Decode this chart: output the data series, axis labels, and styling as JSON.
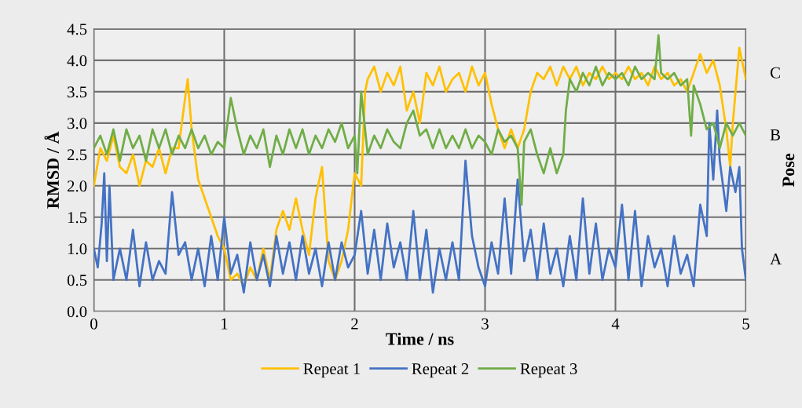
{
  "chart_data": {
    "type": "line",
    "xlabel": "Time / ns",
    "ylabel": "RMSD / Å",
    "y2label": "Pose",
    "xlim": [
      0,
      5
    ],
    "xticks": [
      0,
      1,
      2,
      3,
      4,
      5
    ],
    "ylim": [
      0,
      4.5
    ],
    "yticks": [
      {
        "value": 0,
        "label": "0.0"
      },
      {
        "value": 0.5,
        "label": "0.5"
      },
      {
        "value": 1,
        "label": "1.0"
      },
      {
        "value": 1.5,
        "label": "1.5"
      },
      {
        "value": 2,
        "label": "2.0"
      },
      {
        "value": 2.5,
        "label": "2.5"
      },
      {
        "value": 3,
        "label": "3.0"
      },
      {
        "value": 3.5,
        "label": "3.5"
      },
      {
        "value": 4,
        "label": "4.0"
      },
      {
        "value": 4.5,
        "label": "4.5"
      }
    ],
    "annotations": [
      "A",
      "B",
      "C"
    ],
    "grid": true,
    "legend": "bottom",
    "marker": "none",
    "line_style": "solid",
    "series": [
      {
        "name": "Repeat 1",
        "color": "#ffc000",
        "x": [
          0,
          0.05,
          0.1,
          0.15,
          0.2,
          0.25,
          0.3,
          0.35,
          0.4,
          0.45,
          0.5,
          0.55,
          0.6,
          0.65,
          0.7,
          0.72,
          0.75,
          0.8,
          0.85,
          0.9,
          0.95,
          1.0,
          1.05,
          1.1,
          1.15,
          1.2,
          1.25,
          1.3,
          1.35,
          1.4,
          1.45,
          1.5,
          1.55,
          1.6,
          1.65,
          1.7,
          1.75,
          1.8,
          1.85,
          1.9,
          1.95,
          2.0,
          2.05,
          2.08,
          2.1,
          2.15,
          2.2,
          2.25,
          2.3,
          2.35,
          2.4,
          2.45,
          2.5,
          2.55,
          2.6,
          2.65,
          2.7,
          2.75,
          2.8,
          2.85,
          2.9,
          2.95,
          3.0,
          3.05,
          3.1,
          3.15,
          3.2,
          3.25,
          3.3,
          3.35,
          3.4,
          3.45,
          3.5,
          3.55,
          3.6,
          3.65,
          3.7,
          3.75,
          3.8,
          3.85,
          3.9,
          3.95,
          4.0,
          4.05,
          4.1,
          4.15,
          4.2,
          4.25,
          4.3,
          4.35,
          4.4,
          4.45,
          4.5,
          4.55,
          4.6,
          4.65,
          4.7,
          4.75,
          4.8,
          4.85,
          4.88,
          4.9,
          4.95,
          5.0
        ],
        "values": [
          2.0,
          2.6,
          2.4,
          2.8,
          2.3,
          2.2,
          2.5,
          2.0,
          2.4,
          2.3,
          2.6,
          2.2,
          2.6,
          2.6,
          3.4,
          3.7,
          2.9,
          2.1,
          1.8,
          1.5,
          1.2,
          1.0,
          0.5,
          0.6,
          0.4,
          0.7,
          0.5,
          1.0,
          0.5,
          1.3,
          1.6,
          1.3,
          1.8,
          1.3,
          0.9,
          1.8,
          2.3,
          0.8,
          0.5,
          0.8,
          1.3,
          2.2,
          2.0,
          3.5,
          3.7,
          3.9,
          3.5,
          3.8,
          3.6,
          3.9,
          3.2,
          3.5,
          3.0,
          3.8,
          3.6,
          3.9,
          3.5,
          3.7,
          3.8,
          3.5,
          3.9,
          3.6,
          3.8,
          3.3,
          2.9,
          2.6,
          2.9,
          2.6,
          2.9,
          3.5,
          3.8,
          3.7,
          3.9,
          3.6,
          3.9,
          3.7,
          3.9,
          3.6,
          3.8,
          3.7,
          3.9,
          3.7,
          3.8,
          3.7,
          3.9,
          3.7,
          3.8,
          3.6,
          3.9,
          3.7,
          3.8,
          3.6,
          3.7,
          3.5,
          3.8,
          4.1,
          3.8,
          4.0,
          3.6,
          2.9,
          2.3,
          3.0,
          4.2,
          3.7
        ]
      },
      {
        "name": "Repeat 2",
        "color": "#4472c4",
        "x": [
          0,
          0.03,
          0.06,
          0.08,
          0.1,
          0.12,
          0.15,
          0.2,
          0.25,
          0.3,
          0.35,
          0.4,
          0.45,
          0.5,
          0.55,
          0.6,
          0.65,
          0.7,
          0.75,
          0.8,
          0.85,
          0.9,
          0.95,
          1.0,
          1.05,
          1.1,
          1.15,
          1.2,
          1.25,
          1.3,
          1.35,
          1.4,
          1.45,
          1.5,
          1.55,
          1.6,
          1.65,
          1.7,
          1.75,
          1.8,
          1.85,
          1.9,
          1.95,
          2.0,
          2.05,
          2.1,
          2.15,
          2.2,
          2.25,
          2.3,
          2.35,
          2.4,
          2.45,
          2.5,
          2.55,
          2.6,
          2.65,
          2.7,
          2.75,
          2.8,
          2.85,
          2.9,
          2.95,
          3.0,
          3.05,
          3.1,
          3.15,
          3.2,
          3.25,
          3.3,
          3.35,
          3.4,
          3.45,
          3.5,
          3.55,
          3.6,
          3.65,
          3.7,
          3.75,
          3.8,
          3.85,
          3.9,
          3.95,
          4.0,
          4.05,
          4.1,
          4.15,
          4.2,
          4.25,
          4.3,
          4.35,
          4.4,
          4.45,
          4.5,
          4.55,
          4.6,
          4.65,
          4.7,
          4.72,
          4.75,
          4.78,
          4.8,
          4.85,
          4.88,
          4.92,
          4.95,
          4.97,
          5.0
        ],
        "values": [
          1.0,
          0.7,
          1.4,
          2.2,
          0.8,
          2.0,
          0.5,
          1.0,
          0.5,
          1.3,
          0.4,
          1.1,
          0.5,
          0.8,
          0.6,
          1.9,
          0.9,
          1.1,
          0.5,
          1.0,
          0.4,
          1.2,
          0.5,
          1.5,
          0.6,
          0.9,
          0.3,
          1.1,
          0.5,
          0.9,
          0.4,
          1.2,
          0.6,
          1.1,
          0.5,
          1.2,
          0.6,
          1.0,
          0.4,
          1.1,
          0.5,
          1.1,
          0.7,
          0.9,
          1.6,
          0.6,
          1.3,
          0.5,
          1.4,
          0.7,
          1.1,
          0.5,
          1.6,
          0.5,
          1.3,
          0.3,
          1.0,
          0.5,
          1.1,
          0.5,
          2.4,
          1.2,
          0.7,
          0.4,
          1.1,
          0.6,
          1.8,
          0.6,
          2.1,
          0.8,
          1.3,
          0.5,
          1.4,
          0.6,
          1.0,
          0.4,
          1.2,
          0.5,
          1.8,
          0.6,
          1.4,
          0.5,
          1.0,
          0.7,
          1.7,
          0.5,
          1.6,
          0.4,
          1.2,
          0.7,
          1.0,
          0.4,
          1.2,
          0.6,
          0.9,
          0.4,
          1.7,
          1.2,
          3.0,
          2.1,
          3.2,
          2.4,
          1.6,
          2.3,
          1.9,
          2.3,
          1.0,
          0.5
        ]
      },
      {
        "name": "Repeat 3",
        "color": "#70ad47",
        "x": [
          0,
          0.05,
          0.1,
          0.15,
          0.2,
          0.25,
          0.3,
          0.35,
          0.4,
          0.45,
          0.5,
          0.55,
          0.6,
          0.65,
          0.7,
          0.75,
          0.8,
          0.85,
          0.9,
          0.95,
          1.0,
          1.05,
          1.1,
          1.15,
          1.2,
          1.25,
          1.3,
          1.35,
          1.4,
          1.45,
          1.5,
          1.55,
          1.6,
          1.65,
          1.7,
          1.75,
          1.8,
          1.85,
          1.9,
          1.95,
          2.0,
          2.02,
          2.05,
          2.1,
          2.15,
          2.2,
          2.25,
          2.3,
          2.35,
          2.4,
          2.45,
          2.5,
          2.55,
          2.6,
          2.65,
          2.7,
          2.75,
          2.8,
          2.85,
          2.9,
          2.95,
          3.0,
          3.05,
          3.1,
          3.15,
          3.2,
          3.25,
          3.28,
          3.3,
          3.35,
          3.4,
          3.45,
          3.5,
          3.55,
          3.6,
          3.62,
          3.65,
          3.7,
          3.75,
          3.8,
          3.85,
          3.9,
          3.95,
          4.0,
          4.05,
          4.1,
          4.15,
          4.2,
          4.25,
          4.3,
          4.33,
          4.35,
          4.4,
          4.45,
          4.5,
          4.55,
          4.58,
          4.6,
          4.65,
          4.7,
          4.75,
          4.8,
          4.85,
          4.9,
          4.95,
          5.0
        ],
        "values": [
          2.6,
          2.8,
          2.5,
          2.9,
          2.4,
          2.9,
          2.6,
          2.8,
          2.4,
          2.9,
          2.6,
          2.9,
          2.5,
          2.8,
          2.6,
          2.9,
          2.6,
          2.8,
          2.5,
          2.7,
          2.6,
          3.4,
          2.9,
          2.5,
          2.8,
          2.6,
          2.9,
          2.3,
          2.8,
          2.5,
          2.9,
          2.6,
          2.9,
          2.5,
          2.8,
          2.6,
          2.9,
          2.7,
          3.0,
          2.6,
          2.8,
          2.2,
          3.5,
          2.5,
          2.8,
          2.6,
          2.9,
          2.7,
          2.6,
          3.0,
          3.2,
          2.8,
          2.9,
          2.6,
          2.9,
          2.6,
          2.8,
          2.6,
          2.9,
          2.6,
          2.8,
          2.7,
          2.5,
          2.9,
          2.7,
          2.8,
          2.6,
          1.7,
          2.7,
          2.9,
          2.5,
          2.2,
          2.6,
          2.2,
          2.5,
          3.2,
          3.7,
          3.5,
          3.8,
          3.6,
          3.9,
          3.6,
          3.8,
          3.7,
          3.8,
          3.6,
          3.9,
          3.7,
          3.8,
          3.7,
          4.4,
          3.8,
          3.7,
          3.8,
          3.6,
          3.7,
          2.8,
          3.6,
          3.3,
          2.9,
          3.0,
          2.6,
          3.0,
          2.8,
          3.0,
          2.8
        ]
      }
    ]
  }
}
